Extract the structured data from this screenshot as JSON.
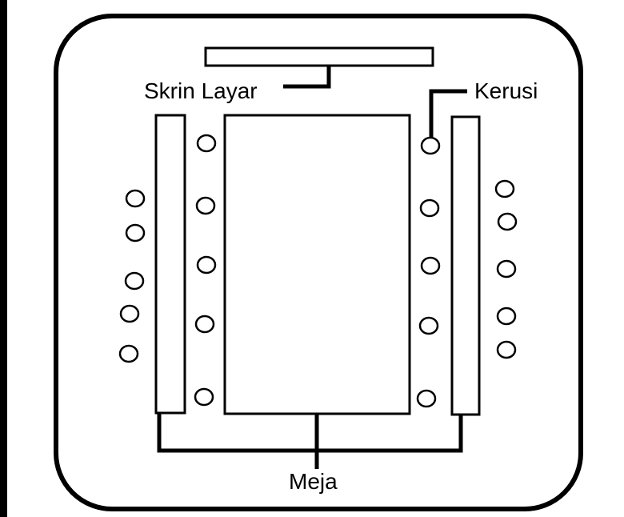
{
  "labels": {
    "screen": "Skrin Layar",
    "chair": "Kerusi",
    "table": "Meja"
  },
  "colors": {
    "stroke": "#000000",
    "fill": "#ffffff"
  }
}
